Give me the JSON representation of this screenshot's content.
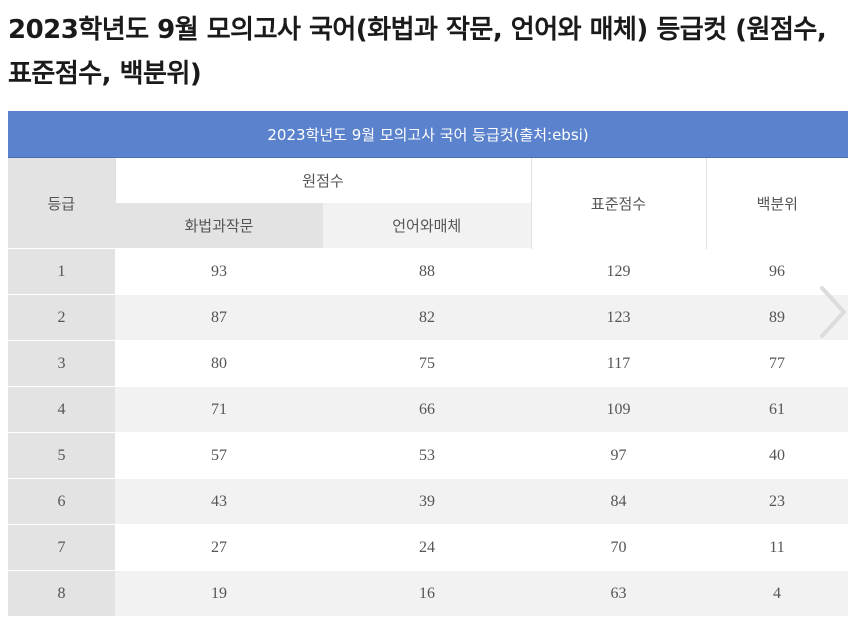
{
  "page": {
    "title": "2023학년도 9월 모의고사 국어(화법과 작문, 언어와 매체) 등급컷 (원점수, 표준점수, 백분위)"
  },
  "table": {
    "caption": "2023학년도 9월 모의고사 국어 등급컷(출처:ebsi)",
    "headers": {
      "grade": "등급",
      "raw_score": "원점수",
      "raw_sub1": "화법과작문",
      "raw_sub2": "언어와매체",
      "standard": "표준점수",
      "percentile": "백분위"
    },
    "rows": [
      [
        "1",
        "93",
        "88",
        "129",
        "96"
      ],
      [
        "2",
        "87",
        "82",
        "123",
        "89"
      ],
      [
        "3",
        "80",
        "75",
        "117",
        "77"
      ],
      [
        "4",
        "71",
        "66",
        "109",
        "61"
      ],
      [
        "5",
        "57",
        "53",
        "97",
        "40"
      ],
      [
        "6",
        "43",
        "39",
        "84",
        "23"
      ],
      [
        "7",
        "27",
        "24",
        "70",
        "11"
      ],
      [
        "8",
        "19",
        "16",
        "63",
        "4"
      ]
    ]
  },
  "icons": {
    "next": "chevron-right-icon"
  }
}
